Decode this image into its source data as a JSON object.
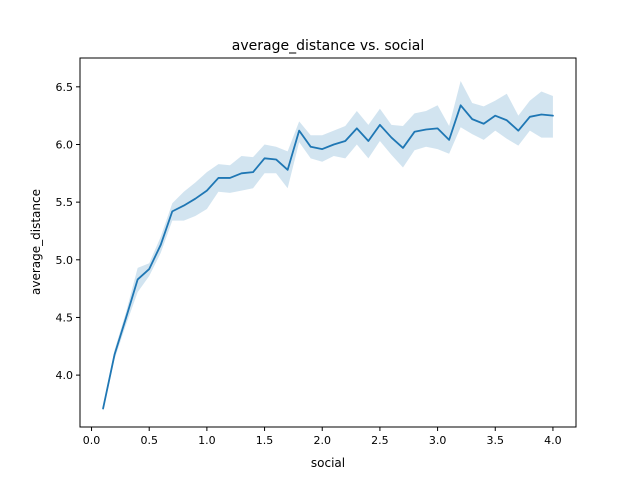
{
  "chart_data": {
    "type": "line",
    "title": "average_distance vs. social",
    "xlabel": "social",
    "ylabel": "average_distance",
    "xlim": [
      -0.1,
      4.2
    ],
    "ylim": [
      3.55,
      6.75
    ],
    "xticks": [
      0.0,
      0.5,
      1.0,
      1.5,
      2.0,
      2.5,
      3.0,
      3.5,
      4.0
    ],
    "xtick_labels": [
      "0.0",
      "0.5",
      "1.0",
      "1.5",
      "2.0",
      "2.5",
      "3.0",
      "3.5",
      "4.0"
    ],
    "yticks": [
      4.0,
      4.5,
      5.0,
      5.5,
      6.0,
      6.5
    ],
    "ytick_labels": [
      "4.0",
      "4.5",
      "5.0",
      "5.5",
      "6.0",
      "6.5"
    ],
    "grid": false,
    "legend": false,
    "colors": {
      "line": "#1f77b4",
      "band": "#1f77b4"
    },
    "series": [
      {
        "x": [
          0.1,
          0.2,
          0.3,
          0.4,
          0.5,
          0.6,
          0.7,
          0.8,
          0.9,
          1.0,
          1.1,
          1.2,
          1.3,
          1.4,
          1.5,
          1.6,
          1.7,
          1.8,
          1.9,
          2.0,
          2.1,
          2.2,
          2.3,
          2.4,
          2.5,
          2.6,
          2.7,
          2.8,
          2.9,
          3.0,
          3.1,
          3.2,
          3.3,
          3.4,
          3.5,
          3.6,
          3.7,
          3.8,
          3.9,
          4.0
        ],
        "y": [
          3.71,
          4.18,
          4.5,
          4.83,
          4.92,
          5.13,
          5.42,
          5.47,
          5.53,
          5.6,
          5.71,
          5.71,
          5.75,
          5.76,
          5.88,
          5.87,
          5.78,
          6.12,
          5.98,
          5.96,
          6.0,
          6.03,
          6.14,
          6.03,
          6.17,
          6.06,
          5.97,
          6.11,
          6.13,
          6.14,
          6.04,
          6.34,
          6.22,
          6.18,
          6.25,
          6.21,
          6.12,
          6.24,
          6.26,
          6.25
        ],
        "y_lower": [
          3.69,
          4.14,
          4.44,
          4.72,
          4.86,
          5.06,
          5.34,
          5.34,
          5.38,
          5.44,
          5.59,
          5.58,
          5.6,
          5.62,
          5.75,
          5.75,
          5.62,
          6.02,
          5.88,
          5.85,
          5.9,
          5.88,
          6.0,
          5.88,
          6.03,
          5.91,
          5.8,
          5.95,
          5.98,
          5.96,
          5.92,
          6.15,
          6.09,
          6.04,
          6.12,
          6.05,
          5.99,
          6.12,
          6.06,
          6.06
        ],
        "y_upper": [
          3.73,
          4.22,
          4.55,
          4.93,
          4.97,
          5.2,
          5.49,
          5.59,
          5.67,
          5.76,
          5.83,
          5.82,
          5.9,
          5.89,
          6.0,
          5.98,
          5.94,
          6.2,
          6.08,
          6.08,
          6.12,
          6.16,
          6.29,
          6.17,
          6.31,
          6.17,
          6.16,
          6.27,
          6.29,
          6.34,
          6.16,
          6.55,
          6.36,
          6.33,
          6.38,
          6.44,
          6.25,
          6.38,
          6.46,
          6.42
        ]
      }
    ]
  }
}
